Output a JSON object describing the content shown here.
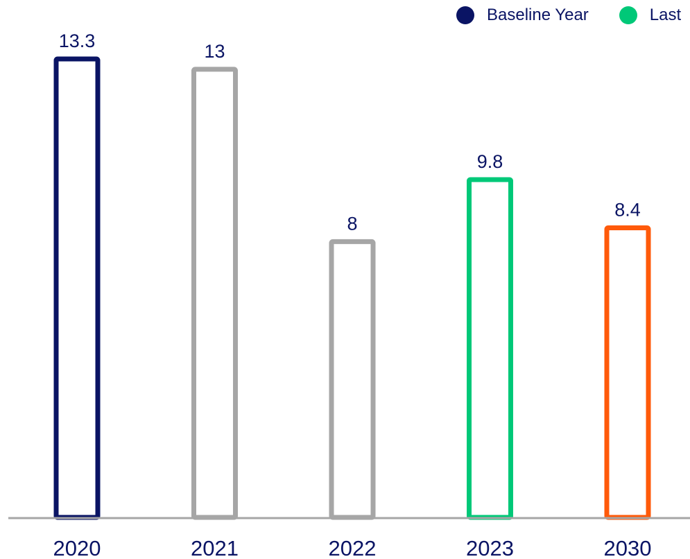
{
  "chart_data": {
    "type": "bar",
    "categories": [
      "2020",
      "2021",
      "2022",
      "2023",
      "2030"
    ],
    "values": [
      13.3,
      13,
      8,
      9.8,
      8.4
    ],
    "value_labels": [
      "13.3",
      "13",
      "8",
      "9.8",
      "8.4"
    ],
    "bar_colors": [
      "#0a1464",
      "#a6a6a6",
      "#a6a6a6",
      "#00c878",
      "#ff5a0a"
    ],
    "bar_style": "outlined",
    "ylim": [
      0,
      13.3
    ],
    "grid": false,
    "baseline_color": "#a6a6a6",
    "legend_position": "top-right",
    "legend": [
      {
        "label": "Baseline Year",
        "color": "#0a1464"
      },
      {
        "label": "Last",
        "color": "#00c878"
      }
    ]
  }
}
